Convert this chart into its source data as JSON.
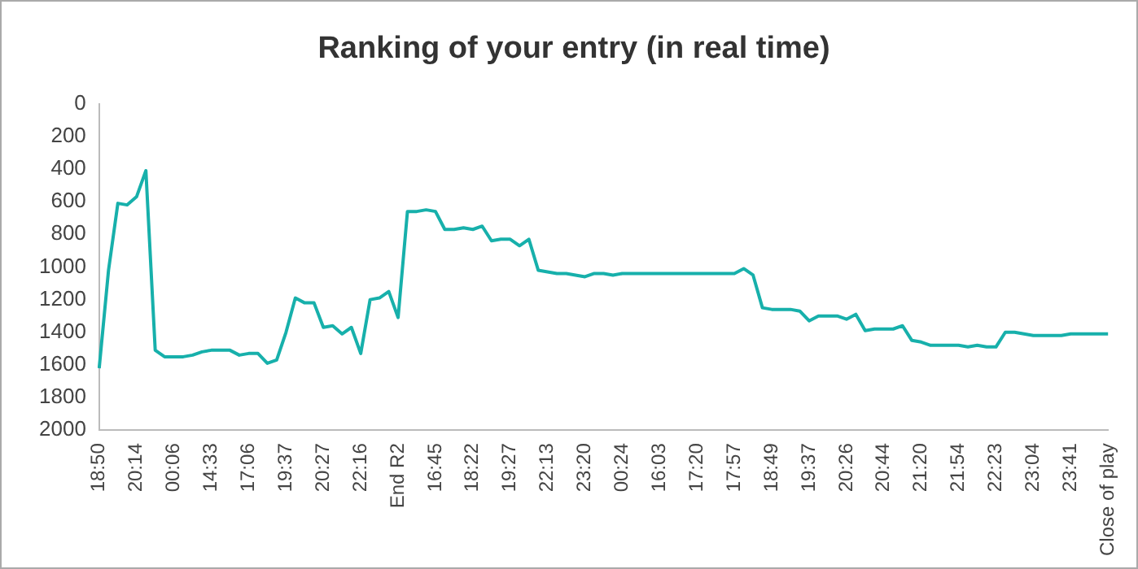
{
  "chart_data": {
    "type": "line",
    "title": "Ranking of your entry (in real time)",
    "categories": [
      "18:50",
      null,
      null,
      null,
      "20:14",
      null,
      null,
      null,
      "00:06",
      null,
      null,
      null,
      "14:33",
      null,
      null,
      null,
      "17:06",
      null,
      null,
      null,
      "19:37",
      null,
      null,
      null,
      "20:27",
      null,
      null,
      null,
      "22:16",
      null,
      null,
      null,
      "End R2",
      null,
      null,
      null,
      "16:45",
      null,
      null,
      null,
      "18:22",
      null,
      null,
      null,
      "19:27",
      null,
      null,
      null,
      "22:13",
      null,
      null,
      null,
      "23:20",
      null,
      null,
      null,
      "00:24",
      null,
      null,
      null,
      "16:03",
      null,
      null,
      null,
      "17:20",
      null,
      null,
      null,
      "17:57",
      null,
      null,
      null,
      "18:49",
      null,
      null,
      null,
      "19:37",
      null,
      null,
      null,
      "20:26",
      null,
      null,
      null,
      "20:44",
      null,
      null,
      null,
      "21:20",
      null,
      null,
      null,
      "21:54",
      null,
      null,
      null,
      "22:23",
      null,
      null,
      null,
      "23:04",
      null,
      null,
      null,
      "23:41",
      null,
      null,
      null,
      "Close of play"
    ],
    "series": [
      {
        "color": "#17b0ab",
        "values": [
          1620,
          1020,
          610,
          620,
          570,
          410,
          1510,
          1550,
          1550,
          1550,
          1540,
          1520,
          1510,
          1510,
          1510,
          1540,
          1530,
          1530,
          1590,
          1570,
          1400,
          1190,
          1220,
          1220,
          1370,
          1360,
          1410,
          1370,
          1530,
          1200,
          1190,
          1150,
          1310,
          660,
          660,
          650,
          660,
          770,
          770,
          760,
          770,
          750,
          840,
          830,
          830,
          870,
          830,
          1020,
          1030,
          1040,
          1040,
          1050,
          1060,
          1040,
          1040,
          1050,
          1040,
          1040,
          1040,
          1040,
          1040,
          1040,
          1040,
          1040,
          1040,
          1040,
          1040,
          1040,
          1040,
          1010,
          1050,
          1250,
          1260,
          1260,
          1260,
          1270,
          1330,
          1300,
          1300,
          1300,
          1320,
          1290,
          1390,
          1380,
          1380,
          1380,
          1360,
          1450,
          1460,
          1480,
          1480,
          1480,
          1480,
          1490,
          1480,
          1490,
          1490,
          1400,
          1400,
          1410,
          1420,
          1420,
          1420,
          1420,
          1410,
          1410,
          1410,
          1410,
          1410
        ]
      }
    ],
    "ylim": [
      2000,
      0
    ],
    "yticks": [
      0,
      200,
      400,
      600,
      800,
      1000,
      1200,
      1400,
      1600,
      1800,
      2000
    ],
    "grid": false,
    "legend": false,
    "marker": "none",
    "line_style": "solid"
  }
}
